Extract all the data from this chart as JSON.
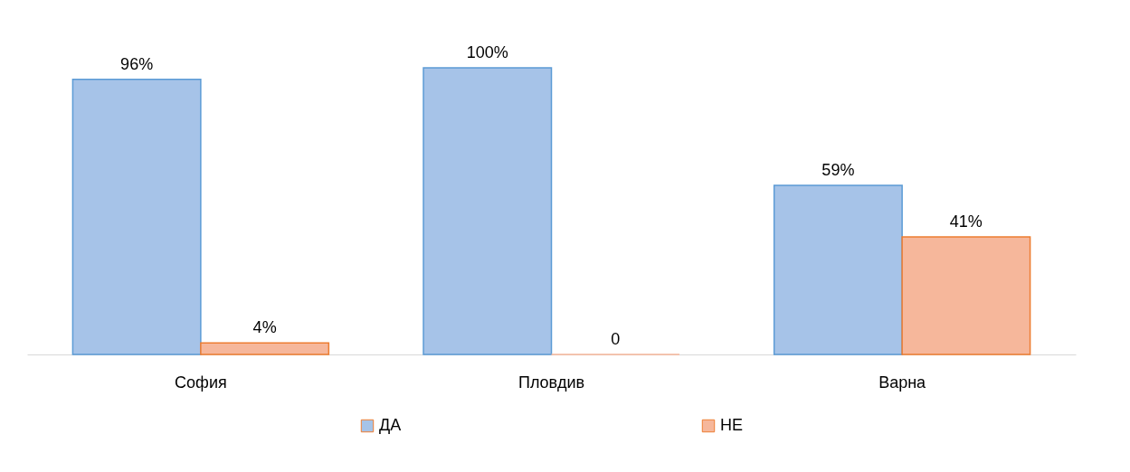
{
  "chart_data": {
    "type": "bar",
    "categories": [
      "София",
      "Пловдив",
      "Варна"
    ],
    "series": [
      {
        "name": "ДА",
        "color": "#a6c3e8",
        "values": [
          96,
          100,
          59
        ],
        "value_labels": [
          "96%",
          "100%",
          "59%"
        ]
      },
      {
        "name": "НЕ",
        "color": "#f6b79b",
        "values": [
          4,
          0,
          41
        ],
        "value_labels": [
          "4%",
          "0",
          "41%"
        ]
      }
    ],
    "legend": "bottom"
  }
}
